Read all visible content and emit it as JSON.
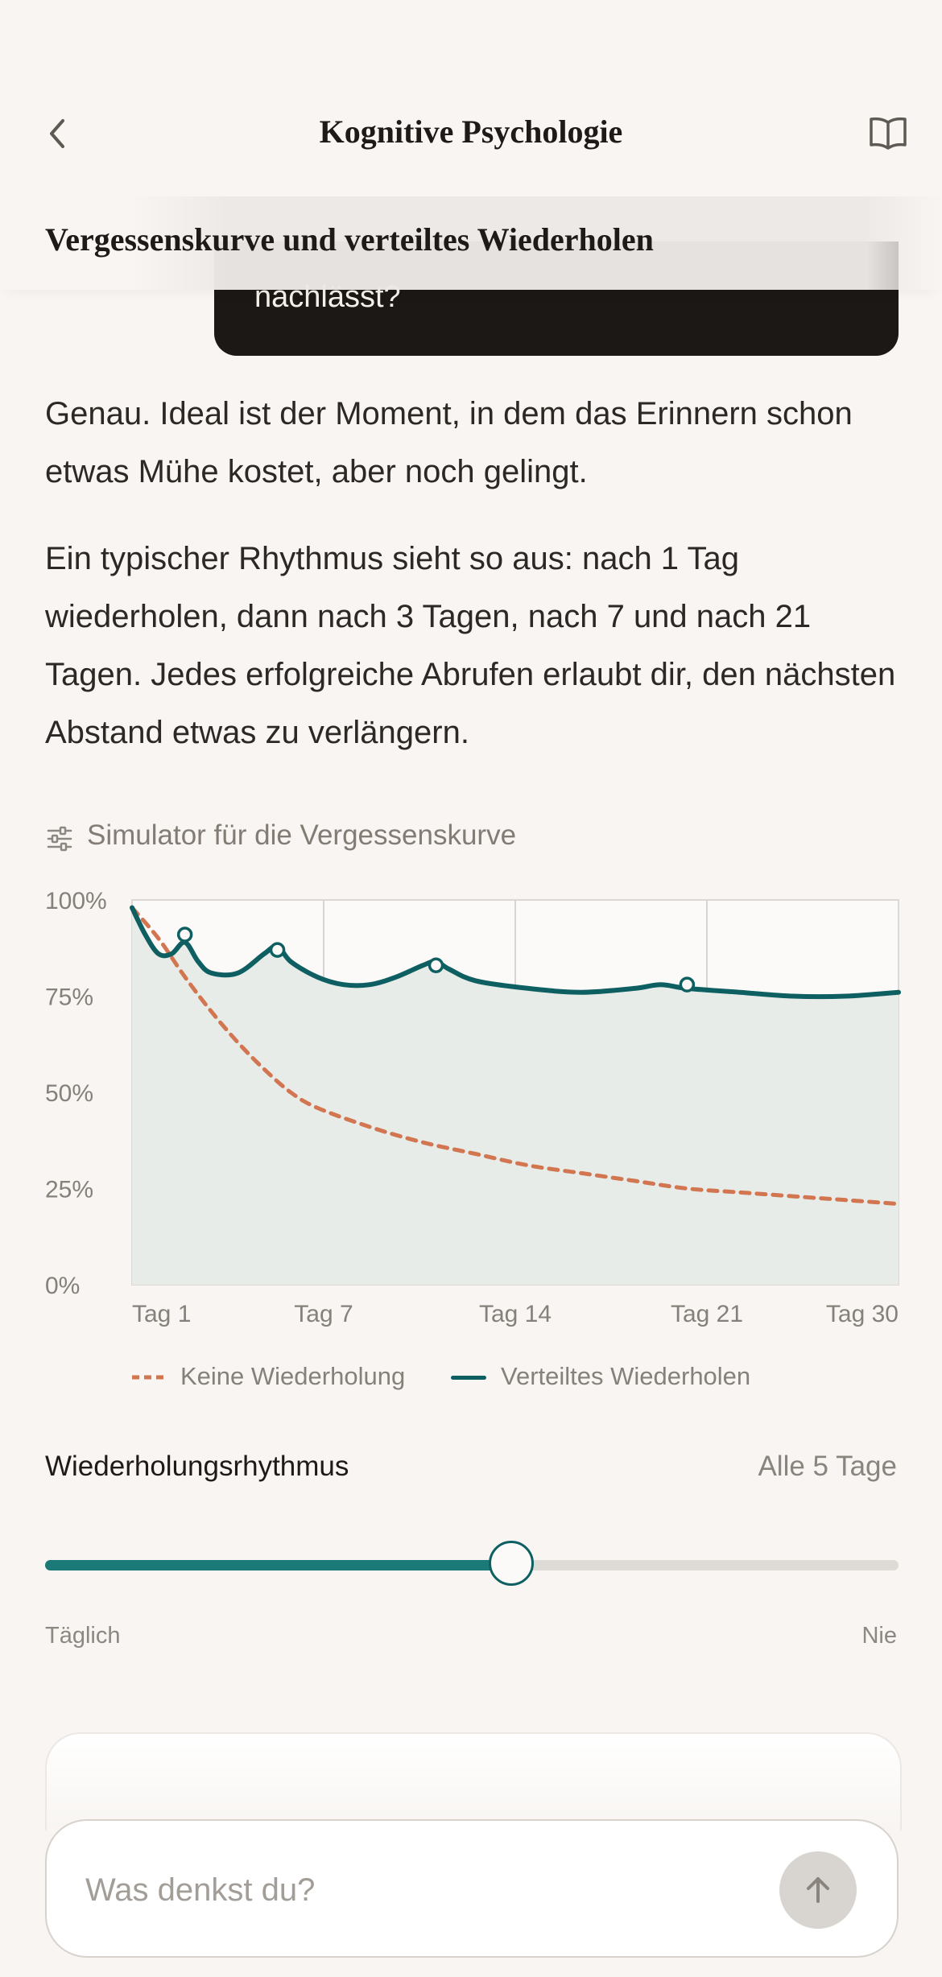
{
  "header": {
    "title": "Kognitive Psychologie",
    "back_icon": "chevron-left-icon",
    "book_icon": "book-open-icon"
  },
  "section_title": "Vergessenskurve und verteiltes Wiederholen",
  "user_bubble_tail": "nachlässt?",
  "assistant": {
    "paragraph_1": "Genau. Ideal ist der Moment, in dem das Erinnern schon etwas Mühe kostet, aber noch gelingt.",
    "paragraph_2": "Ein typischer Rhythmus sieht so aus: nach 1 Tag wiederholen, dann nach 3 Tagen, nach 7 und nach 21 Tagen. Jedes erfolgreiche Abrufen erlaubt dir, den nächsten Abstand etwas zu verlängern."
  },
  "simulator": {
    "icon": "sliders-icon",
    "label": "Simulator für die Vergessenskurve"
  },
  "chart_data": {
    "type": "line",
    "x_range": [
      1,
      30
    ],
    "y_range": [
      0,
      100
    ],
    "y_ticks": [
      "100%",
      "75%",
      "50%",
      "25%",
      "0%"
    ],
    "x_ticks": [
      "Tag 1",
      "Tag 7",
      "Tag 14",
      "Tag 21",
      "Tag 30"
    ],
    "grid": true,
    "legend_position": "bottom",
    "series": [
      {
        "name": "Keine Wiederholung",
        "color": "#d17650",
        "style": "dashed",
        "x": [
          1,
          2,
          3,
          4,
          5,
          6,
          7,
          8,
          10,
          12,
          14,
          16,
          18,
          20,
          22,
          24,
          26,
          28,
          30
        ],
        "y": [
          98,
          90,
          80,
          71,
          63,
          56,
          50,
          46,
          41,
          37,
          34,
          31,
          29,
          27,
          25,
          24,
          23,
          22,
          21
        ]
      },
      {
        "name": "Verteiltes Wiederholen",
        "color": "#0e5f61",
        "style": "solid",
        "x": [
          1,
          1.5,
          2,
          2.5,
          3,
          3.5,
          4,
          5,
          6,
          6.5,
          7,
          8,
          9,
          10,
          11,
          12,
          12.5,
          13,
          14,
          16,
          18,
          20,
          21,
          22,
          24,
          26,
          28,
          30
        ],
        "y": [
          98,
          91,
          86,
          86,
          89,
          84,
          81,
          81,
          86,
          88,
          84,
          80,
          78,
          78,
          80,
          83,
          84,
          82,
          79,
          77,
          76,
          77,
          78,
          77,
          76,
          75,
          75,
          76
        ],
        "markers_x": [
          3,
          6.5,
          12.5,
          22
        ],
        "markers_y": [
          91,
          87,
          83,
          78
        ]
      }
    ]
  },
  "legend": {
    "no_review": "Keine Wiederholung",
    "spaced": "Verteiltes Wiederholen"
  },
  "rhythm": {
    "label": "Wiederholungsrhythmus",
    "value": "Alle 5 Tage",
    "min_label": "Täglich",
    "max_label": "Nie",
    "slider_fraction": 0.55
  },
  "composer": {
    "placeholder": "Was denkst du?",
    "send_icon": "arrow-up-icon"
  },
  "colors": {
    "accent": "#0e5f61",
    "orange": "#d17650",
    "background": "#f8f5f2"
  }
}
